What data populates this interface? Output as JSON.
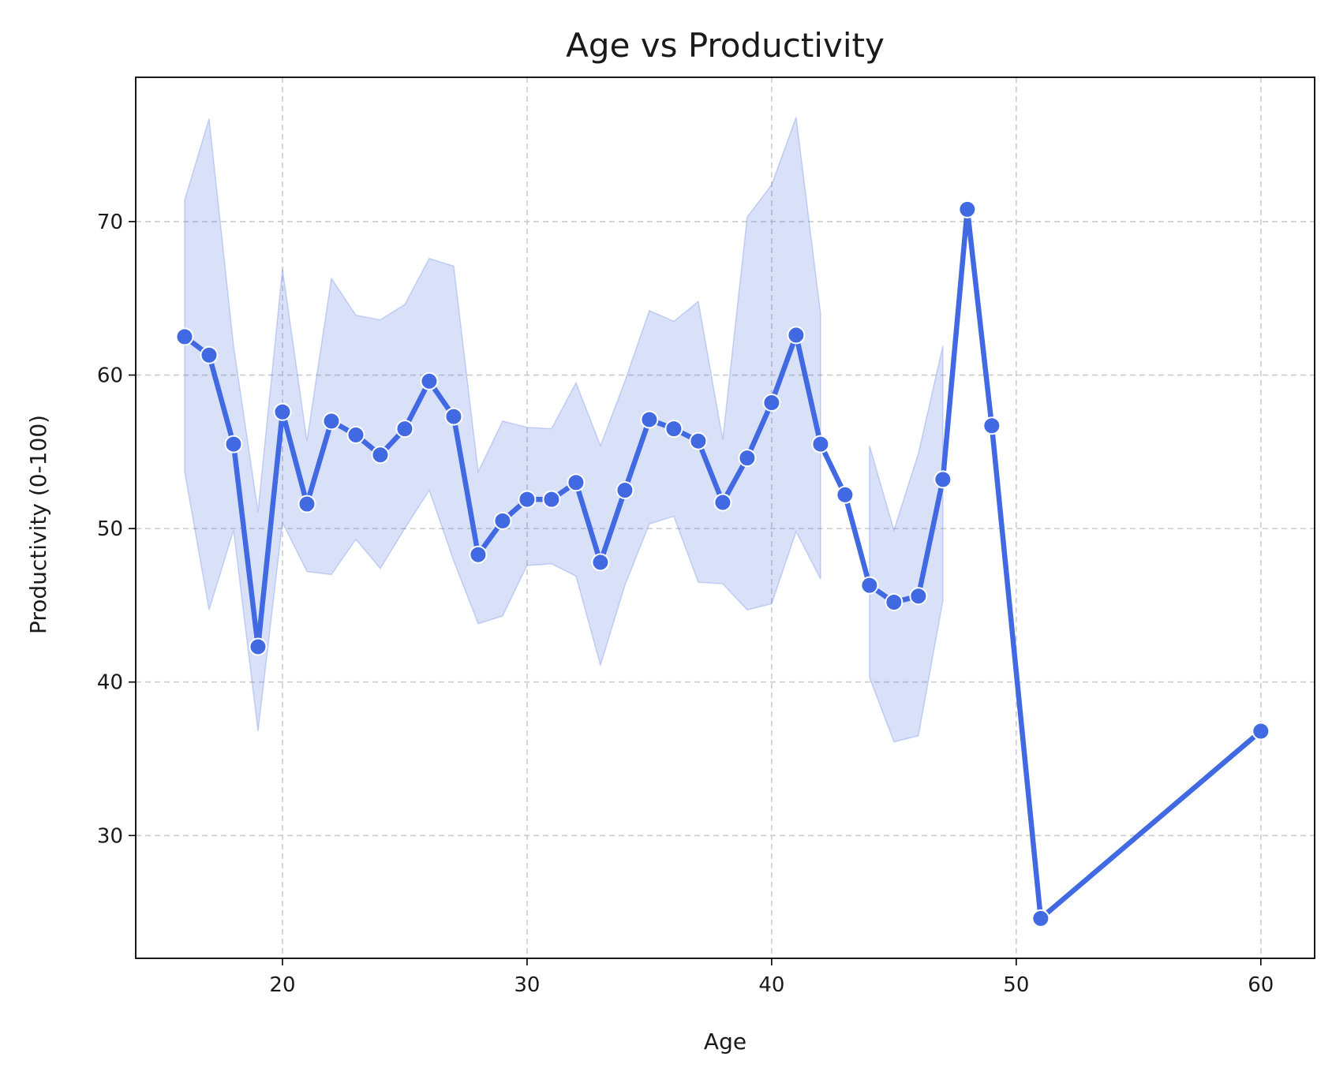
{
  "chart_data": {
    "type": "line",
    "title": "Age vs Productivity",
    "xlabel": "Age",
    "ylabel": "Productivity (0-100)",
    "xlim": [
      14,
      62.2
    ],
    "ylim": [
      22.0,
      79.4
    ],
    "x_ticks": [
      20,
      30,
      40,
      50,
      60
    ],
    "y_ticks": [
      30,
      40,
      50,
      60,
      70
    ],
    "grid": true,
    "colors": {
      "line": "#4169e1",
      "band": "#4169e1",
      "marker_edge": "#ffffff"
    },
    "series": [
      {
        "x": [
          16,
          17,
          18,
          19,
          20,
          21,
          22,
          23,
          24,
          25,
          26,
          27,
          28,
          29,
          30,
          31,
          32,
          33,
          34,
          35,
          36,
          37,
          38,
          39,
          40,
          41,
          42,
          43,
          44,
          45,
          46,
          47,
          48,
          49,
          51,
          60
        ],
        "y": [
          62.5,
          61.3,
          55.5,
          42.3,
          57.6,
          51.6,
          57.0,
          56.1,
          54.8,
          56.5,
          59.6,
          57.3,
          48.3,
          50.5,
          51.9,
          51.9,
          53.0,
          47.8,
          52.5,
          57.1,
          56.5,
          55.7,
          51.7,
          54.6,
          58.2,
          62.6,
          55.5,
          52.2,
          46.3,
          45.2,
          45.6,
          53.2,
          70.8,
          56.7,
          24.6,
          36.8
        ]
      }
    ],
    "confidence_band": {
      "x": [
        16,
        17,
        18,
        19,
        20,
        21,
        22,
        23,
        24,
        25,
        26,
        27,
        28,
        29,
        30,
        31,
        32,
        33,
        34,
        35,
        36,
        37,
        38,
        39,
        40,
        41,
        42,
        43,
        44,
        45,
        46,
        47
      ],
      "lower": [
        53.7,
        44.7,
        49.9,
        36.8,
        50.4,
        47.2,
        47.0,
        49.3,
        47.4,
        50.0,
        52.5,
        47.9,
        43.8,
        44.3,
        47.6,
        47.7,
        46.9,
        41.1,
        46.3,
        50.3,
        50.8,
        46.5,
        46.4,
        44.7,
        45.1,
        49.8,
        46.7,
        null,
        40.3,
        36.1,
        36.5,
        45.3
      ],
      "upper": [
        71.4,
        76.7,
        61.9,
        51.1,
        66.9,
        55.7,
        66.3,
        63.9,
        63.6,
        64.6,
        67.6,
        67.1,
        53.7,
        57.0,
        56.6,
        56.5,
        59.5,
        55.4,
        59.6,
        64.2,
        63.5,
        64.8,
        55.8,
        70.3,
        72.4,
        76.8,
        64.0,
        null,
        55.4,
        49.9,
        54.9,
        61.9
      ]
    }
  }
}
